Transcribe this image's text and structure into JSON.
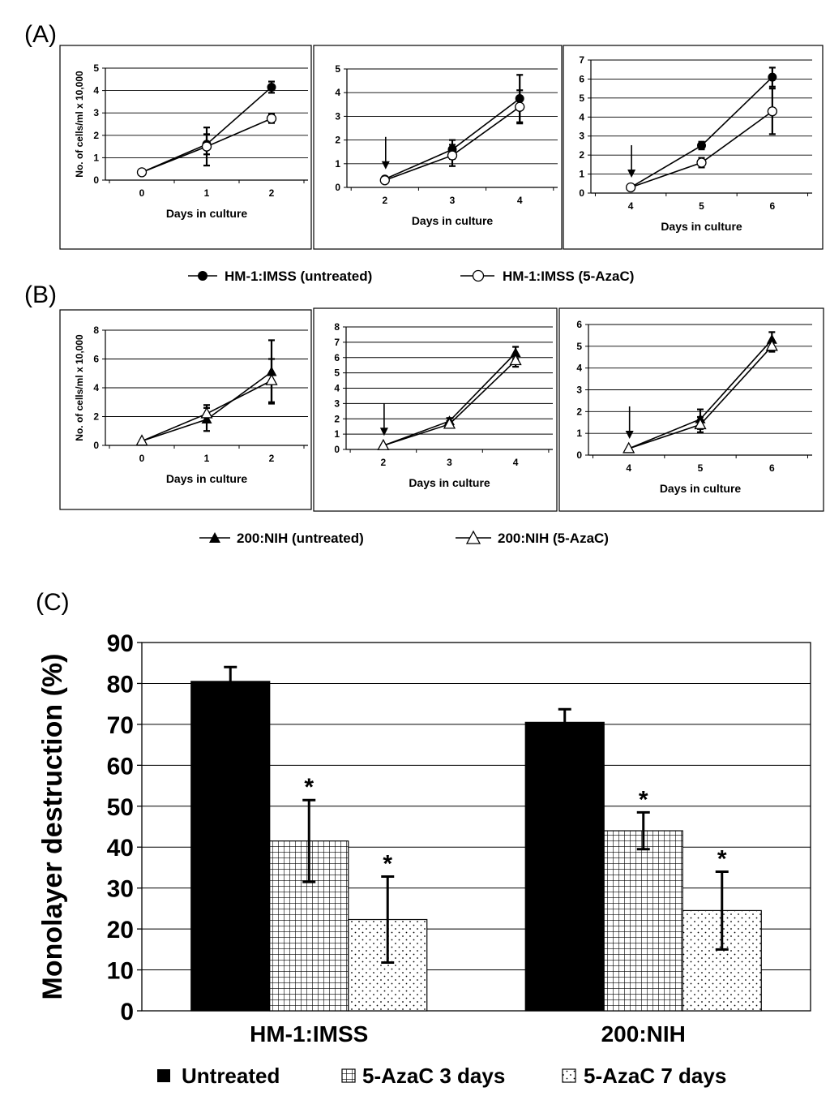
{
  "panels": {
    "A": {
      "label": "(A)"
    },
    "B": {
      "label": "(B)"
    },
    "C": {
      "label": "(C)"
    }
  },
  "legends": {
    "A": [
      {
        "name": "HM-1:IMSS (untreated)",
        "marker": "filled-circle"
      },
      {
        "name": "HM-1:IMSS (5-AzaC)",
        "marker": "open-circle"
      }
    ],
    "B": [
      {
        "name": "200:NIH (untreated)",
        "marker": "filled-triangle"
      },
      {
        "name": "200:NIH (5-AzaC)",
        "marker": "open-triangle"
      }
    ],
    "C": [
      {
        "name": "Untreated",
        "pattern": "solid"
      },
      {
        "name": "5-AzaC 3 days",
        "pattern": "grid"
      },
      {
        "name": "5-AzaC 7 days",
        "pattern": "dots"
      }
    ]
  },
  "chart_data": [
    {
      "id": "A1",
      "type": "line",
      "xlabel": "Days in culture",
      "ylabel": "No. of cells/ml x 10,000",
      "x": [
        0,
        1,
        2
      ],
      "xlim": [
        0,
        2
      ],
      "ylim": [
        0,
        5
      ],
      "yticks": [
        0,
        1,
        2,
        3,
        4,
        5
      ],
      "grid": true,
      "arrow_at": null,
      "series": [
        {
          "name": "HM-1:IMSS (untreated)",
          "marker": "filled-circle",
          "values": [
            0.35,
            1.6,
            4.15
          ],
          "errors": [
            0.05,
            0.45,
            0.25
          ]
        },
        {
          "name": "HM-1:IMSS (5-AzaC)",
          "marker": "open-circle",
          "values": [
            0.35,
            1.5,
            2.75
          ],
          "errors": [
            0.05,
            0.85,
            0.2
          ]
        }
      ]
    },
    {
      "id": "A2",
      "type": "line",
      "xlabel": "Days in culture",
      "ylabel": "",
      "x": [
        2,
        3,
        4
      ],
      "xlim": [
        2,
        4
      ],
      "ylim": [
        0,
        5
      ],
      "yticks": [
        0,
        1,
        2,
        3,
        4,
        5
      ],
      "grid": true,
      "arrow_at": 2,
      "series": [
        {
          "name": "HM-1:IMSS (untreated)",
          "marker": "filled-circle",
          "values": [
            0.35,
            1.6,
            3.75
          ],
          "errors": [
            0.05,
            0.4,
            1.0
          ]
        },
        {
          "name": "HM-1:IMSS (5-AzaC)",
          "marker": "open-circle",
          "values": [
            0.3,
            1.35,
            3.4
          ],
          "errors": [
            0.05,
            0.45,
            0.7
          ]
        }
      ]
    },
    {
      "id": "A3",
      "type": "line",
      "xlabel": "Days in culture",
      "ylabel": "",
      "x": [
        4,
        5,
        6
      ],
      "xlim": [
        4,
        6
      ],
      "ylim": [
        0,
        7
      ],
      "yticks": [
        0,
        1,
        2,
        3,
        4,
        5,
        6,
        7
      ],
      "grid": true,
      "arrow_at": 4,
      "series": [
        {
          "name": "HM-1:IMSS (untreated)",
          "marker": "filled-circle",
          "values": [
            0.3,
            2.5,
            6.1
          ],
          "errors": [
            0.05,
            0.2,
            0.5
          ]
        },
        {
          "name": "HM-1:IMSS (5-AzaC)",
          "marker": "open-circle",
          "values": [
            0.3,
            1.6,
            4.3
          ],
          "errors": [
            0.05,
            0.25,
            1.2
          ]
        }
      ]
    },
    {
      "id": "B1",
      "type": "line",
      "xlabel": "Days in culture",
      "ylabel": "No. of cells/ml x 10,000",
      "x": [
        0,
        1,
        2
      ],
      "xlim": [
        0,
        2
      ],
      "ylim": [
        0,
        8
      ],
      "yticks": [
        0,
        2,
        4,
        6,
        8
      ],
      "grid": true,
      "arrow_at": null,
      "series": [
        {
          "name": "200:NIH (untreated)",
          "marker": "filled-triangle",
          "values": [
            0.3,
            1.8,
            5.1
          ],
          "errors": [
            0.05,
            0.8,
            2.2
          ]
        },
        {
          "name": "200:NIH (5-AzaC)",
          "marker": "open-triangle",
          "values": [
            0.3,
            2.2,
            4.5
          ],
          "errors": [
            0.05,
            0.6,
            1.5
          ]
        }
      ]
    },
    {
      "id": "B2",
      "type": "line",
      "xlabel": "Days in culture",
      "ylabel": "",
      "x": [
        2,
        3,
        4
      ],
      "xlim": [
        2,
        4
      ],
      "ylim": [
        0,
        8
      ],
      "yticks": [
        0,
        1,
        2,
        3,
        4,
        5,
        6,
        7,
        8
      ],
      "grid": true,
      "arrow_at": 2,
      "series": [
        {
          "name": "200:NIH (untreated)",
          "marker": "filled-triangle",
          "values": [
            0.25,
            1.85,
            6.3
          ],
          "errors": [
            0.05,
            0.2,
            0.4
          ]
        },
        {
          "name": "200:NIH (5-AzaC)",
          "marker": "open-triangle",
          "values": [
            0.25,
            1.65,
            5.8
          ],
          "errors": [
            0.05,
            0.2,
            0.4
          ]
        }
      ]
    },
    {
      "id": "B3",
      "type": "line",
      "xlabel": "Days in culture",
      "ylabel": "",
      "x": [
        4,
        5,
        6
      ],
      "xlim": [
        4,
        6
      ],
      "ylim": [
        0,
        6
      ],
      "yticks": [
        0,
        1,
        2,
        3,
        4,
        5,
        6
      ],
      "grid": true,
      "arrow_at": 4,
      "series": [
        {
          "name": "200:NIH (untreated)",
          "marker": "filled-triangle",
          "values": [
            0.3,
            1.65,
            5.3
          ],
          "errors": [
            0.05,
            0.45,
            0.35
          ]
        },
        {
          "name": "200:NIH (5-AzaC)",
          "marker": "open-triangle",
          "values": [
            0.3,
            1.4,
            5.0
          ],
          "errors": [
            0.05,
            0.35,
            0.25
          ]
        }
      ]
    },
    {
      "id": "C",
      "type": "bar",
      "xlabel": "",
      "ylabel": "Monolayer destruction (%)",
      "categories": [
        "HM-1:IMSS",
        "200:NIH"
      ],
      "ylim": [
        0,
        90
      ],
      "yticks": [
        0,
        10,
        20,
        30,
        40,
        50,
        60,
        70,
        80,
        90
      ],
      "grid": true,
      "legend": "bottom",
      "series": [
        {
          "name": "Untreated",
          "pattern": "solid",
          "values": [
            80.5,
            70.5
          ],
          "errors": [
            3.5,
            3.2
          ],
          "significant": [
            false,
            false
          ]
        },
        {
          "name": "5-AzaC 3 days",
          "pattern": "grid",
          "values": [
            41.5,
            44
          ],
          "errors": [
            10,
            4.5
          ],
          "significant": [
            true,
            true
          ]
        },
        {
          "name": "5-AzaC 7 days",
          "pattern": "dots",
          "values": [
            22.3,
            24.5
          ],
          "errors": [
            10.5,
            9.5
          ],
          "significant": [
            true,
            true
          ]
        }
      ],
      "annotation_symbol": "*"
    }
  ]
}
